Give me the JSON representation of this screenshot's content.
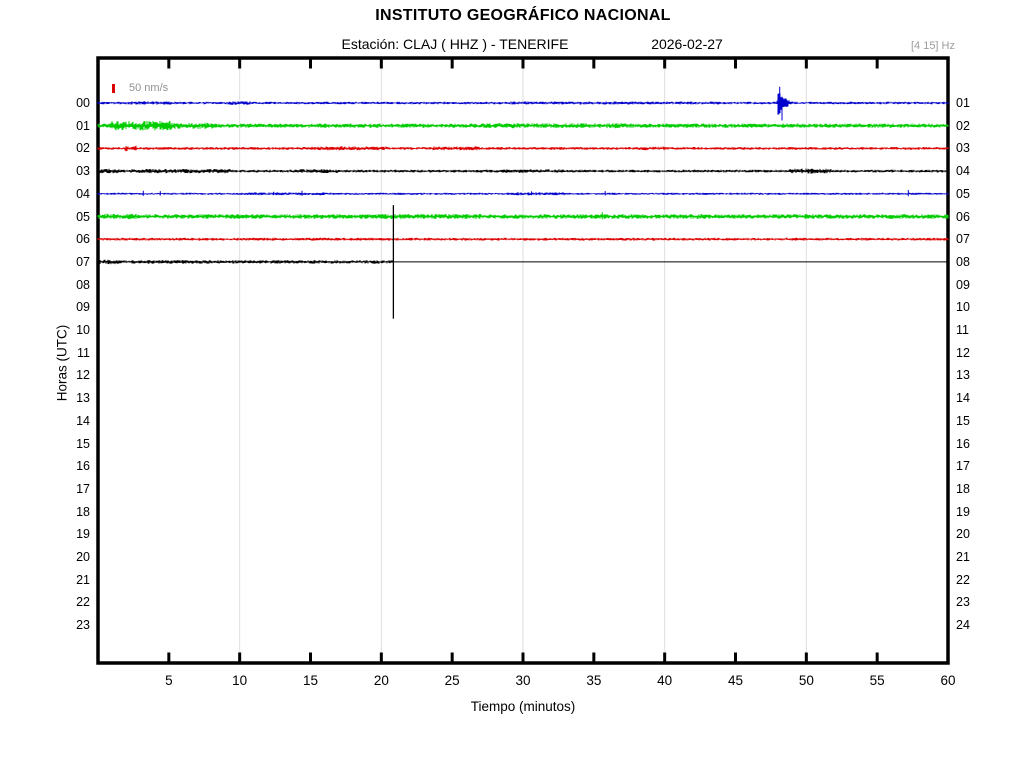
{
  "page": {
    "background": "#FFFFFF"
  },
  "header": {
    "title": "INSTITUTO GEOGRÁFICO NACIONAL",
    "station_line": "Estación:  CLAJ ( HHZ ) - TENERIFE",
    "date": "2026-02-27",
    "filter_band": "[4 15] Hz"
  },
  "chart_data": {
    "type": "line",
    "subtype": "helicorder-seismogram",
    "title": "INSTITUTO GEOGRÁFICO NACIONAL",
    "subtitle": "Estación:  CLAJ ( HHZ ) - TENERIFE",
    "date": "2026-02-27",
    "filter_band_hz": "[4 15] Hz",
    "scale_label": "50 nm/s",
    "scale_nm_per_s": 50,
    "xlabel": "Tiempo (minutos)",
    "ylabel": "Horas (UTC)",
    "xlim": [
      0,
      60
    ],
    "xticks": [
      5,
      10,
      15,
      20,
      25,
      30,
      35,
      40,
      45,
      50,
      55,
      60
    ],
    "grid_minutes": [
      10,
      20,
      30,
      40,
      50
    ],
    "grid": "vertical-only",
    "legend_position": "none",
    "left_hour_labels": [
      "00",
      "01",
      "02",
      "03",
      "04",
      "05",
      "06",
      "07",
      "08",
      "09",
      "10",
      "11",
      "12",
      "13",
      "14",
      "15",
      "16",
      "17",
      "18",
      "19",
      "20",
      "21",
      "22",
      "23"
    ],
    "right_hour_labels": [
      "01",
      "02",
      "03",
      "04",
      "05",
      "06",
      "07",
      "08",
      "09",
      "10",
      "11",
      "12",
      "13",
      "14",
      "15",
      "16",
      "17",
      "18",
      "19",
      "20",
      "21",
      "22",
      "23",
      "24"
    ],
    "colors": {
      "blue": "#0000CC",
      "green": "#00CC00",
      "red": "#DD0000",
      "black": "#000000",
      "grid": "#DEDEDE",
      "muted_text": "#9C9C9C"
    },
    "traces": [
      {
        "start_hour": "00",
        "end_hour": "01",
        "color": "#0000CC",
        "base_amp": 7,
        "segments": [
          {
            "from": 2,
            "to": 5.5,
            "amp": 9
          },
          {
            "from": 9.2,
            "to": 10.8,
            "amp": 10
          },
          {
            "from": 29,
            "to": 44,
            "amp": 8.5
          }
        ],
        "event": {
          "onset": 48.0,
          "peak": 90,
          "decay": 0.45,
          "duration": 2.6
        }
      },
      {
        "start_hour": "01",
        "end_hour": "02",
        "color": "#00CC00",
        "base_amp": 12,
        "segments": [
          {
            "from": 0.9,
            "to": 5.2,
            "amp": 27
          },
          {
            "from": 5.2,
            "to": 8.2,
            "amp": 17
          },
          {
            "from": 27,
            "to": 38,
            "amp": 14
          }
        ]
      },
      {
        "start_hour": "02",
        "end_hour": "03",
        "color": "#DD0000",
        "base_amp": 8,
        "segments": [
          {
            "from": 1.9,
            "to": 2.7,
            "amp": 16
          },
          {
            "from": 15,
            "to": 20.5,
            "amp": 11
          },
          {
            "from": 23.5,
            "to": 27,
            "amp": 11
          },
          {
            "from": 38,
            "to": 40,
            "amp": 10
          }
        ]
      },
      {
        "start_hour": "03",
        "end_hour": "04",
        "color": "#000000",
        "base_amp": 8,
        "segments": [
          {
            "from": 0,
            "to": 1.6,
            "amp": 13
          },
          {
            "from": 2.3,
            "to": 9.4,
            "amp": 12
          },
          {
            "from": 14,
            "to": 17,
            "amp": 11
          },
          {
            "from": 28,
            "to": 33,
            "amp": 10
          },
          {
            "from": 48.8,
            "to": 51.8,
            "amp": 14
          }
        ]
      },
      {
        "start_hour": "04",
        "end_hour": "05",
        "color": "#0000CC",
        "base_amp": 6,
        "segments": [
          {
            "from": 10.5,
            "to": 16,
            "amp": 8
          },
          {
            "from": 29,
            "to": 33,
            "amp": 9
          }
        ],
        "spikes": [
          {
            "at": 3.2,
            "amp": 18
          },
          {
            "at": 4.4,
            "amp": 16
          },
          {
            "at": 12.4,
            "amp": 12
          },
          {
            "at": 14.4,
            "amp": 18
          },
          {
            "at": 30.6,
            "amp": 14
          },
          {
            "at": 35.8,
            "amp": 16
          },
          {
            "at": 57.2,
            "amp": 22
          }
        ]
      },
      {
        "start_hour": "05",
        "end_hour": "06",
        "color": "#00CC00",
        "base_amp": 13,
        "segments": [
          {
            "from": 0,
            "to": 3,
            "amp": 15
          },
          {
            "from": 20,
            "to": 27,
            "amp": 15
          }
        ],
        "spikes": [
          {
            "at": 35.6,
            "amp": 26
          }
        ]
      },
      {
        "start_hour": "06",
        "end_hour": "07",
        "color": "#DD0000",
        "base_amp": 8,
        "segments": []
      },
      {
        "start_hour": "07",
        "end_hour": "08",
        "color": "#000000",
        "base_amp": 10,
        "segments": [
          {
            "from": 0,
            "to": 1.5,
            "amp": 13
          }
        ],
        "cutoff": 20.85,
        "flat_after_cutoff": true
      }
    ],
    "cursor": {
      "minute": 20.85,
      "from_hour_row": 4.5,
      "to_hour_row": 9.5
    }
  }
}
